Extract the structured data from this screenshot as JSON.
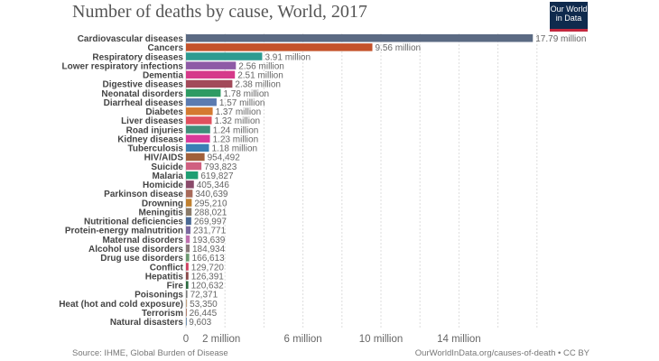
{
  "header": {
    "title": "Number of deaths by cause, World, 2017",
    "logo": "Our World in Data"
  },
  "footer": {
    "source": "Source: IHME, Global Burden of Disease",
    "url": "OurWorldInData.org/causes-of-death • CC BY"
  },
  "chart_data": {
    "type": "bar",
    "orientation": "horizontal",
    "title": "Number of deaths by cause, World, 2017",
    "xlim": [
      0,
      18000000
    ],
    "x_ticks": [
      0,
      2000000,
      6000000,
      10000000,
      14000000
    ],
    "x_tick_labels": [
      "0",
      "2 million",
      "6 million",
      "10 million",
      "14 million"
    ],
    "grid": true,
    "categories": [
      "Cardiovascular diseases",
      "Cancers",
      "Respiratory diseases",
      "Lower respiratory infections",
      "Dementia",
      "Digestive diseases",
      "Neonatal disorders",
      "Diarrheal diseases",
      "Diabetes",
      "Liver diseases",
      "Road injuries",
      "Kidney disease",
      "Tuberculosis",
      "HIV/AIDS",
      "Suicide",
      "Malaria",
      "Homicide",
      "Parkinson disease",
      "Drowning",
      "Meningitis",
      "Nutritional deficiencies",
      "Protein-energy malnutrition",
      "Maternal disorders",
      "Alcohol use disorders",
      "Drug use disorders",
      "Conflict",
      "Hepatitis",
      "Fire",
      "Poisonings",
      "Heat (hot and cold exposure)",
      "Terrorism",
      "Natural disasters"
    ],
    "values": [
      17790000,
      9560000,
      3910000,
      2560000,
      2510000,
      2380000,
      1780000,
      1570000,
      1370000,
      1320000,
      1240000,
      1230000,
      1180000,
      954492,
      793823,
      619827,
      405346,
      340639,
      295210,
      288021,
      269997,
      231771,
      193639,
      184934,
      166613,
      129720,
      126391,
      120632,
      72371,
      53350,
      26445,
      9603
    ],
    "value_labels": [
      "17.79 million",
      "9.56 million",
      "3.91 million",
      "2.56 million",
      "2.51 million",
      "2.38 million",
      "1.78 million",
      "1.57 million",
      "1.37 million",
      "1.32 million",
      "1.24 million",
      "1.23 million",
      "1.18 million",
      "954,492",
      "793,823",
      "619,827",
      "405,346",
      "340,639",
      "295,210",
      "288,021",
      "269,997",
      "231,771",
      "193,639",
      "184,934",
      "166,613",
      "129,720",
      "126,391",
      "120,632",
      "72,371",
      "53,350",
      "26,445",
      "9,603"
    ],
    "colors": [
      "#5b6a83",
      "#c4522a",
      "#2e9b91",
      "#8e5ba6",
      "#d63a8a",
      "#a24a5a",
      "#2e9b63",
      "#5b7bb0",
      "#d47a30",
      "#e0505e",
      "#3f8f7a",
      "#d93a9a",
      "#3a7fb5",
      "#a0603a",
      "#d06080",
      "#1f9e73",
      "#8a4a6a",
      "#a86a5a",
      "#c08030",
      "#8a7a68",
      "#4a6a95",
      "#7a6aa0",
      "#c070b0",
      "#8a7a7a",
      "#6a9a70",
      "#d04060",
      "#8a4a4a",
      "#2a6a40",
      "#7a7a7a",
      "#c0a080",
      "#b08070",
      "#7090b0"
    ]
  }
}
